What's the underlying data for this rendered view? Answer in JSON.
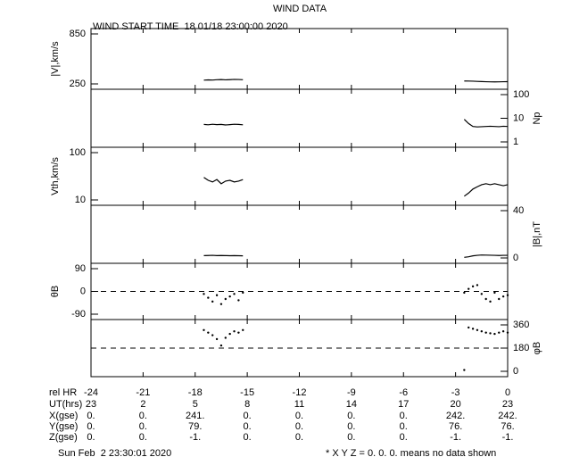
{
  "header": {
    "title": "WIND DATA",
    "subtitle": "WIND START TIME  18 01/18 23:00:00 2020"
  },
  "chart_data": [
    {
      "type": "line",
      "ylabel": "|V|,km/s",
      "axis_side": "left",
      "log": false,
      "color": "#000000",
      "x": [
        -17.5,
        -17.25,
        -17,
        -16.75,
        -16.5,
        -16.25,
        -16,
        -15.75,
        -15.5,
        -15.25,
        -9,
        -2.5,
        -2.25,
        -2,
        -1.75,
        -1.5,
        -1.25,
        -1,
        -0.75,
        -0.5,
        -0.25,
        0
      ],
      "values": [
        295,
        298,
        296,
        300,
        302,
        299,
        301,
        304,
        303,
        300,
        null,
        285,
        284,
        283,
        280,
        278,
        276,
        275,
        274,
        275,
        276,
        277
      ],
      "xlim": [
        -24,
        0
      ],
      "xticks": [
        -24,
        -21,
        -18,
        -15,
        -12,
        -9,
        -6,
        -3,
        0
      ],
      "ylim": [
        250,
        850
      ],
      "yticks": [
        250,
        850
      ]
    },
    {
      "type": "line",
      "ylabel": "Np",
      "axis_side": "right",
      "log": true,
      "color": "#000000",
      "x": [
        -17.5,
        -17.25,
        -17,
        -16.75,
        -16.5,
        -16.25,
        -16,
        -15.75,
        -15.5,
        -15.25,
        -9,
        -2.5,
        -2.25,
        -2,
        -1.75,
        -1.5,
        -1.25,
        -1,
        -0.75,
        -0.5,
        -0.25,
        0
      ],
      "values": [
        5.5,
        5.3,
        5.6,
        5.4,
        5.5,
        5.2,
        5.4,
        5.6,
        5.5,
        5.3,
        null,
        9,
        6,
        4.5,
        4.3,
        4.4,
        4.5,
        4.6,
        4.5,
        4.4,
        4.6,
        4.5
      ],
      "xlim": [
        -24,
        0
      ],
      "xticks": [
        -24,
        -21,
        -18,
        -15,
        -12,
        -9,
        -6,
        -3,
        0
      ],
      "ylim": [
        1,
        100
      ],
      "yticks": [
        1,
        10,
        100
      ]
    },
    {
      "type": "line",
      "ylabel": "Vth,km/s",
      "axis_side": "left",
      "log": true,
      "color": "#000000",
      "x": [
        -17.5,
        -17.25,
        -17,
        -16.75,
        -16.5,
        -16.25,
        -16,
        -15.75,
        -15.5,
        -15.25,
        -9,
        -2.5,
        -2.25,
        -2,
        -1.75,
        -1.5,
        -1.25,
        -1,
        -0.75,
        -0.5,
        -0.25,
        0
      ],
      "values": [
        30,
        26,
        24,
        27,
        22,
        25,
        26,
        24,
        25,
        27,
        null,
        12,
        14,
        17,
        19,
        21,
        22,
        21,
        22,
        21,
        20,
        21
      ],
      "xlim": [
        -24,
        0
      ],
      "xticks": [
        -24,
        -21,
        -18,
        -15,
        -12,
        -9,
        -6,
        -3,
        0
      ],
      "ylim": [
        10,
        100
      ],
      "yticks": [
        10,
        100
      ]
    },
    {
      "type": "line",
      "ylabel": "|B|,nT",
      "axis_side": "right",
      "log": false,
      "color": "#000000",
      "x": [
        -17.5,
        -17.25,
        -17,
        -16.75,
        -16.5,
        -16.25,
        -16,
        -15.75,
        -15.5,
        -15.25,
        -9,
        -2.5,
        -2.25,
        -2,
        -1.75,
        -1.5,
        -1.25,
        -1,
        -0.75,
        -0.5,
        -0.25,
        0
      ],
      "values": [
        2,
        2.1,
        2.2,
        2,
        2.1,
        2,
        1.9,
        2,
        1.9,
        1.8,
        null,
        0.5,
        1,
        1.8,
        2.2,
        2.5,
        2.4,
        2.3,
        2.2,
        2.1,
        2.2,
        2.2
      ],
      "xlim": [
        -24,
        0
      ],
      "xticks": [
        -24,
        -21,
        -18,
        -15,
        -12,
        -9,
        -6,
        -3,
        0
      ],
      "ylim": [
        0,
        40
      ],
      "yticks": [
        0,
        40
      ]
    },
    {
      "type": "scatter",
      "ylabel": "θB",
      "axis_side": "left",
      "log": false,
      "color": "#000000",
      "ref_line": 0,
      "x": [
        -17.5,
        -17.25,
        -17,
        -16.75,
        -16.5,
        -16.25,
        -16,
        -15.75,
        -15.5,
        -15.25,
        -9,
        -2.5,
        -2.25,
        -2,
        -1.75,
        -1.5,
        -1.25,
        -1,
        -0.75,
        -0.5,
        -0.25,
        0
      ],
      "values": [
        -10,
        -25,
        -40,
        -15,
        -50,
        -30,
        -20,
        -10,
        -35,
        -5,
        null,
        -5,
        10,
        20,
        25,
        -10,
        -30,
        -40,
        -5,
        -30,
        -20,
        -15
      ],
      "xlim": [
        -24,
        0
      ],
      "xticks": [
        -24,
        -21,
        -18,
        -15,
        -12,
        -9,
        -6,
        -3,
        0
      ],
      "ylim": [
        -90,
        90
      ],
      "yticks": [
        -90,
        0,
        90
      ]
    },
    {
      "type": "scatter",
      "ylabel": "φB",
      "axis_side": "right",
      "log": false,
      "color": "#000000",
      "ref_line": 180,
      "x": [
        -17.5,
        -17.25,
        -17,
        -16.75,
        -16.5,
        -16.25,
        -16,
        -15.75,
        -15.5,
        -15.25,
        -9,
        -2.5,
        -2.25,
        -2,
        -1.75,
        -1.5,
        -1.25,
        -1,
        -0.75,
        -0.5,
        -0.25,
        0
      ],
      "values": [
        320,
        300,
        280,
        250,
        200,
        260,
        290,
        310,
        300,
        320,
        null,
        10,
        340,
        330,
        320,
        310,
        300,
        295,
        290,
        300,
        310,
        300
      ],
      "xlim": [
        -24,
        0
      ],
      "xticks": [
        -24,
        -21,
        -18,
        -15,
        -12,
        -9,
        -6,
        -3,
        0
      ],
      "ylim": [
        0,
        360
      ],
      "yticks": [
        0,
        180,
        360
      ]
    }
  ],
  "table": {
    "rel_label": "rel HR",
    "rows": [
      {
        "label": "UT(hrs)",
        "cells": [
          "23",
          "2",
          "5",
          "8",
          "11",
          "14",
          "17",
          "20",
          "23"
        ]
      },
      {
        "label": "X(gse)",
        "cells": [
          "0.",
          "0.",
          "241.",
          "0.",
          "0.",
          "0.",
          "0.",
          "242.",
          "242."
        ]
      },
      {
        "label": "Y(gse)",
        "cells": [
          "0.",
          "0.",
          "79.",
          "0.",
          "0.",
          "0.",
          "0.",
          "76.",
          "76."
        ]
      },
      {
        "label": "Z(gse)",
        "cells": [
          "0.",
          "0.",
          "-1.",
          "0.",
          "0.",
          "0.",
          "0.",
          "-1.",
          "-1."
        ]
      }
    ]
  },
  "footer": {
    "date": "Sun Feb  2 23:30:01 2020",
    "note": "* X Y Z = 0. 0. 0. means no data shown"
  }
}
